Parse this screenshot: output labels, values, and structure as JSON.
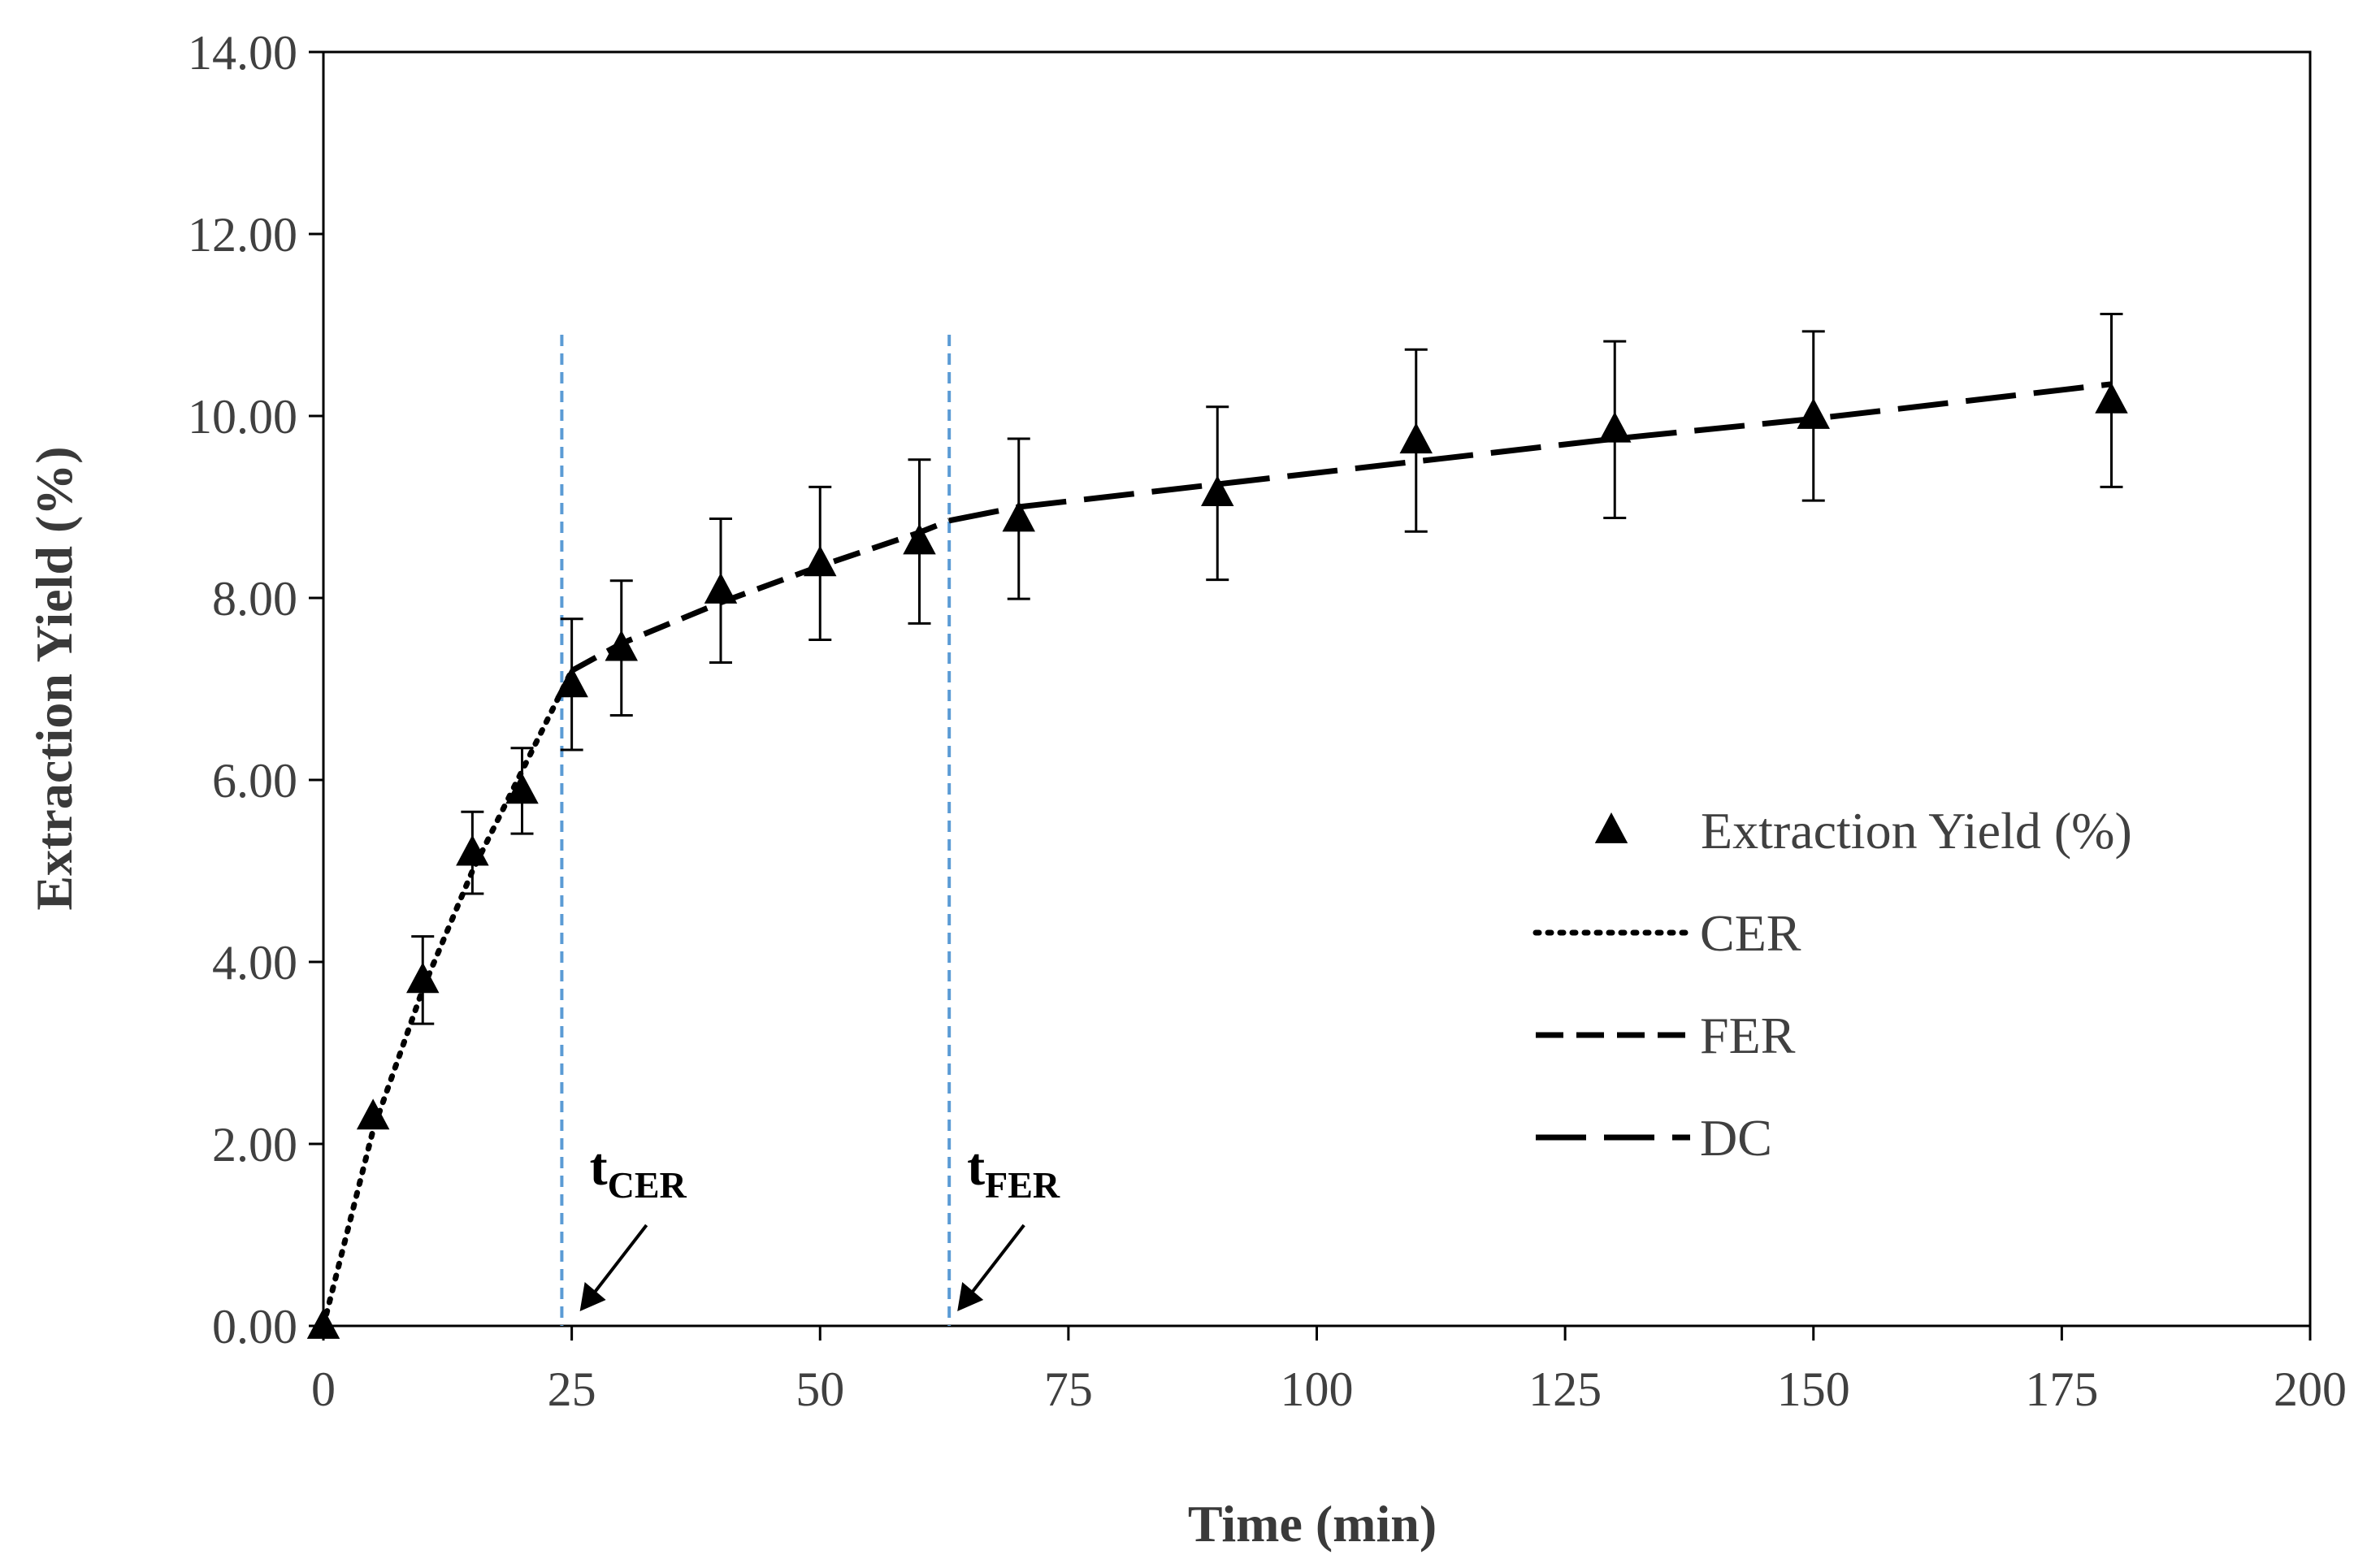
{
  "chart_data": {
    "type": "scatter",
    "title": "",
    "xlabel": "Time (min)",
    "ylabel": "Extraction Yield (%)",
    "xlim": [
      0,
      200
    ],
    "ylim": [
      0,
      14
    ],
    "grid": false,
    "x_ticks": [
      {
        "value": 0,
        "label": "0"
      },
      {
        "value": 25,
        "label": "25"
      },
      {
        "value": 50,
        "label": "50"
      },
      {
        "value": 75,
        "label": "75"
      },
      {
        "value": 100,
        "label": "100"
      },
      {
        "value": 125,
        "label": "125"
      },
      {
        "value": 150,
        "label": "150"
      },
      {
        "value": 175,
        "label": "175"
      },
      {
        "value": 200,
        "label": "200"
      }
    ],
    "y_ticks": [
      {
        "value": 0,
        "label": "0.00"
      },
      {
        "value": 2,
        "label": "2.00"
      },
      {
        "value": 4,
        "label": "4.00"
      },
      {
        "value": 6,
        "label": "6.00"
      },
      {
        "value": 8,
        "label": "8.00"
      },
      {
        "value": 10,
        "label": "10.00"
      },
      {
        "value": 12,
        "label": "12.00"
      },
      {
        "value": 14,
        "label": "14.00"
      }
    ],
    "series": [
      {
        "name": "Extraction Yield (%)",
        "kind": "markers",
        "marker": "triangle",
        "color": "#000000",
        "x": [
          0,
          5,
          10,
          15,
          20,
          25,
          30,
          40,
          50,
          60,
          70,
          90,
          110,
          130,
          150,
          180
        ],
        "y": [
          0.0,
          2.3,
          3.8,
          5.2,
          5.88,
          7.05,
          7.45,
          8.08,
          8.38,
          8.62,
          8.87,
          9.15,
          9.73,
          9.85,
          10.0,
          10.17
        ],
        "error": [
          0.0,
          0.0,
          0.48,
          0.45,
          0.47,
          0.72,
          0.74,
          0.79,
          0.84,
          0.9,
          0.88,
          0.95,
          1.0,
          0.97,
          0.93,
          0.95
        ]
      },
      {
        "name": "CER",
        "kind": "line",
        "style": "dotted",
        "color": "#000000",
        "x": [
          0,
          5,
          10,
          15,
          20,
          25
        ],
        "y": [
          0.0,
          2.15,
          3.7,
          5.0,
          6.1,
          7.2
        ]
      },
      {
        "name": "FER",
        "kind": "line",
        "style": "dashed",
        "color": "#000000",
        "x": [
          25,
          30,
          40,
          50,
          60,
          63
        ],
        "y": [
          7.2,
          7.5,
          7.95,
          8.35,
          8.72,
          8.85
        ]
      },
      {
        "name": "DC",
        "kind": "line",
        "style": "long-dash",
        "color": "#000000",
        "x": [
          63,
          70,
          90,
          110,
          130,
          150,
          180
        ],
        "y": [
          8.85,
          9.0,
          9.25,
          9.5,
          9.75,
          9.97,
          10.35
        ]
      }
    ],
    "vertical_lines": [
      {
        "x": 24,
        "color": "#5b9bd5",
        "style": "dashed"
      },
      {
        "x": 63,
        "color": "#5b9bd5",
        "style": "dashed"
      }
    ],
    "annotations": [
      {
        "main": "t",
        "sub": "CER",
        "x": 25
      },
      {
        "main": "t",
        "sub": "FER",
        "x": 63
      }
    ],
    "legend": {
      "position": "right",
      "entries": [
        "Extraction Yield (%)",
        "CER",
        "FER",
        "DC"
      ]
    }
  }
}
